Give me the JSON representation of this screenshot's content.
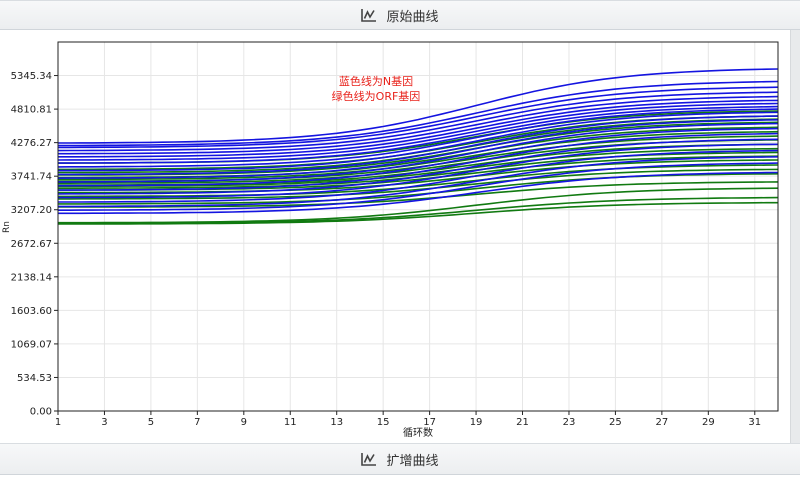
{
  "top_panel": {
    "title": "原始曲线",
    "icon": "line-chart-icon"
  },
  "bottom_panel": {
    "title": "扩增曲线",
    "icon": "line-chart-icon"
  },
  "chart_data": {
    "type": "line",
    "xlabel": "循环数",
    "ylabel": "Rn",
    "xlim": [
      1,
      32
    ],
    "ylim": [
      0,
      5880
    ],
    "x_ticks": [
      1,
      3,
      5,
      7,
      9,
      11,
      13,
      15,
      17,
      19,
      21,
      23,
      25,
      27,
      29,
      31
    ],
    "y_ticks": [
      0.0,
      534.53,
      1069.07,
      1603.6,
      2138.14,
      2672.67,
      3207.2,
      3741.74,
      4276.27,
      4810.81,
      5345.34
    ],
    "y_tick_labels": [
      "0.00",
      "534.53",
      "1069.07",
      "1603.60",
      "2138.14",
      "2672.67",
      "3207.20",
      "3741.74",
      "4276.27",
      "4810.81",
      "5345.34"
    ],
    "grid": true,
    "annotations": [
      "蓝色线为N基因",
      "绿色线为ORF基因"
    ],
    "annotation_color": "#e8221b",
    "series_colors": {
      "N": "#1414e0",
      "ORF": "#117a11"
    },
    "series": [
      {
        "group": "ORF",
        "start": 2980,
        "end": 3320
      },
      {
        "group": "ORF",
        "start": 2990,
        "end": 3400
      },
      {
        "group": "ORF",
        "start": 3000,
        "end": 3550
      },
      {
        "group": "ORF",
        "start": 3250,
        "end": 3650
      },
      {
        "group": "ORF",
        "start": 3300,
        "end": 3780
      },
      {
        "group": "ORF",
        "start": 3380,
        "end": 3850
      },
      {
        "group": "ORF",
        "start": 3420,
        "end": 3920
      },
      {
        "group": "ORF",
        "start": 3480,
        "end": 4000
      },
      {
        "group": "ORF",
        "start": 3520,
        "end": 4060
      },
      {
        "group": "ORF",
        "start": 3550,
        "end": 4120
      },
      {
        "group": "ORF",
        "start": 3580,
        "end": 4180
      },
      {
        "group": "ORF",
        "start": 3600,
        "end": 4250
      },
      {
        "group": "ORF",
        "start": 3630,
        "end": 4320
      },
      {
        "group": "ORF",
        "start": 3660,
        "end": 4380
      },
      {
        "group": "ORF",
        "start": 3690,
        "end": 4450
      },
      {
        "group": "ORF",
        "start": 3720,
        "end": 4520
      },
      {
        "group": "ORF",
        "start": 3760,
        "end": 4600
      },
      {
        "group": "ORF",
        "start": 3800,
        "end": 4650
      },
      {
        "group": "ORF",
        "start": 3850,
        "end": 4700
      },
      {
        "group": "ORF",
        "start": 3950,
        "end": 4780
      },
      {
        "group": "N",
        "start": 3150,
        "end": 3800
      },
      {
        "group": "N",
        "start": 3200,
        "end": 3950
      },
      {
        "group": "N",
        "start": 3260,
        "end": 4050
      },
      {
        "group": "N",
        "start": 3330,
        "end": 4150
      },
      {
        "group": "N",
        "start": 3400,
        "end": 4250
      },
      {
        "group": "N",
        "start": 3460,
        "end": 4330
      },
      {
        "group": "N",
        "start": 3520,
        "end": 4420
      },
      {
        "group": "N",
        "start": 3590,
        "end": 4500
      },
      {
        "group": "N",
        "start": 3650,
        "end": 4580
      },
      {
        "group": "N",
        "start": 3710,
        "end": 4640
      },
      {
        "group": "N",
        "start": 3770,
        "end": 4700
      },
      {
        "group": "N",
        "start": 3830,
        "end": 4760
      },
      {
        "group": "N",
        "start": 3890,
        "end": 4810
      },
      {
        "group": "N",
        "start": 3950,
        "end": 4850
      },
      {
        "group": "N",
        "start": 4000,
        "end": 4900
      },
      {
        "group": "N",
        "start": 4050,
        "end": 4950
      },
      {
        "group": "N",
        "start": 4100,
        "end": 5010
      },
      {
        "group": "N",
        "start": 4150,
        "end": 5080
      },
      {
        "group": "N",
        "start": 4200,
        "end": 5160
      },
      {
        "group": "N",
        "start": 4230,
        "end": 5250
      },
      {
        "group": "N",
        "start": 4270,
        "end": 5450
      }
    ]
  }
}
